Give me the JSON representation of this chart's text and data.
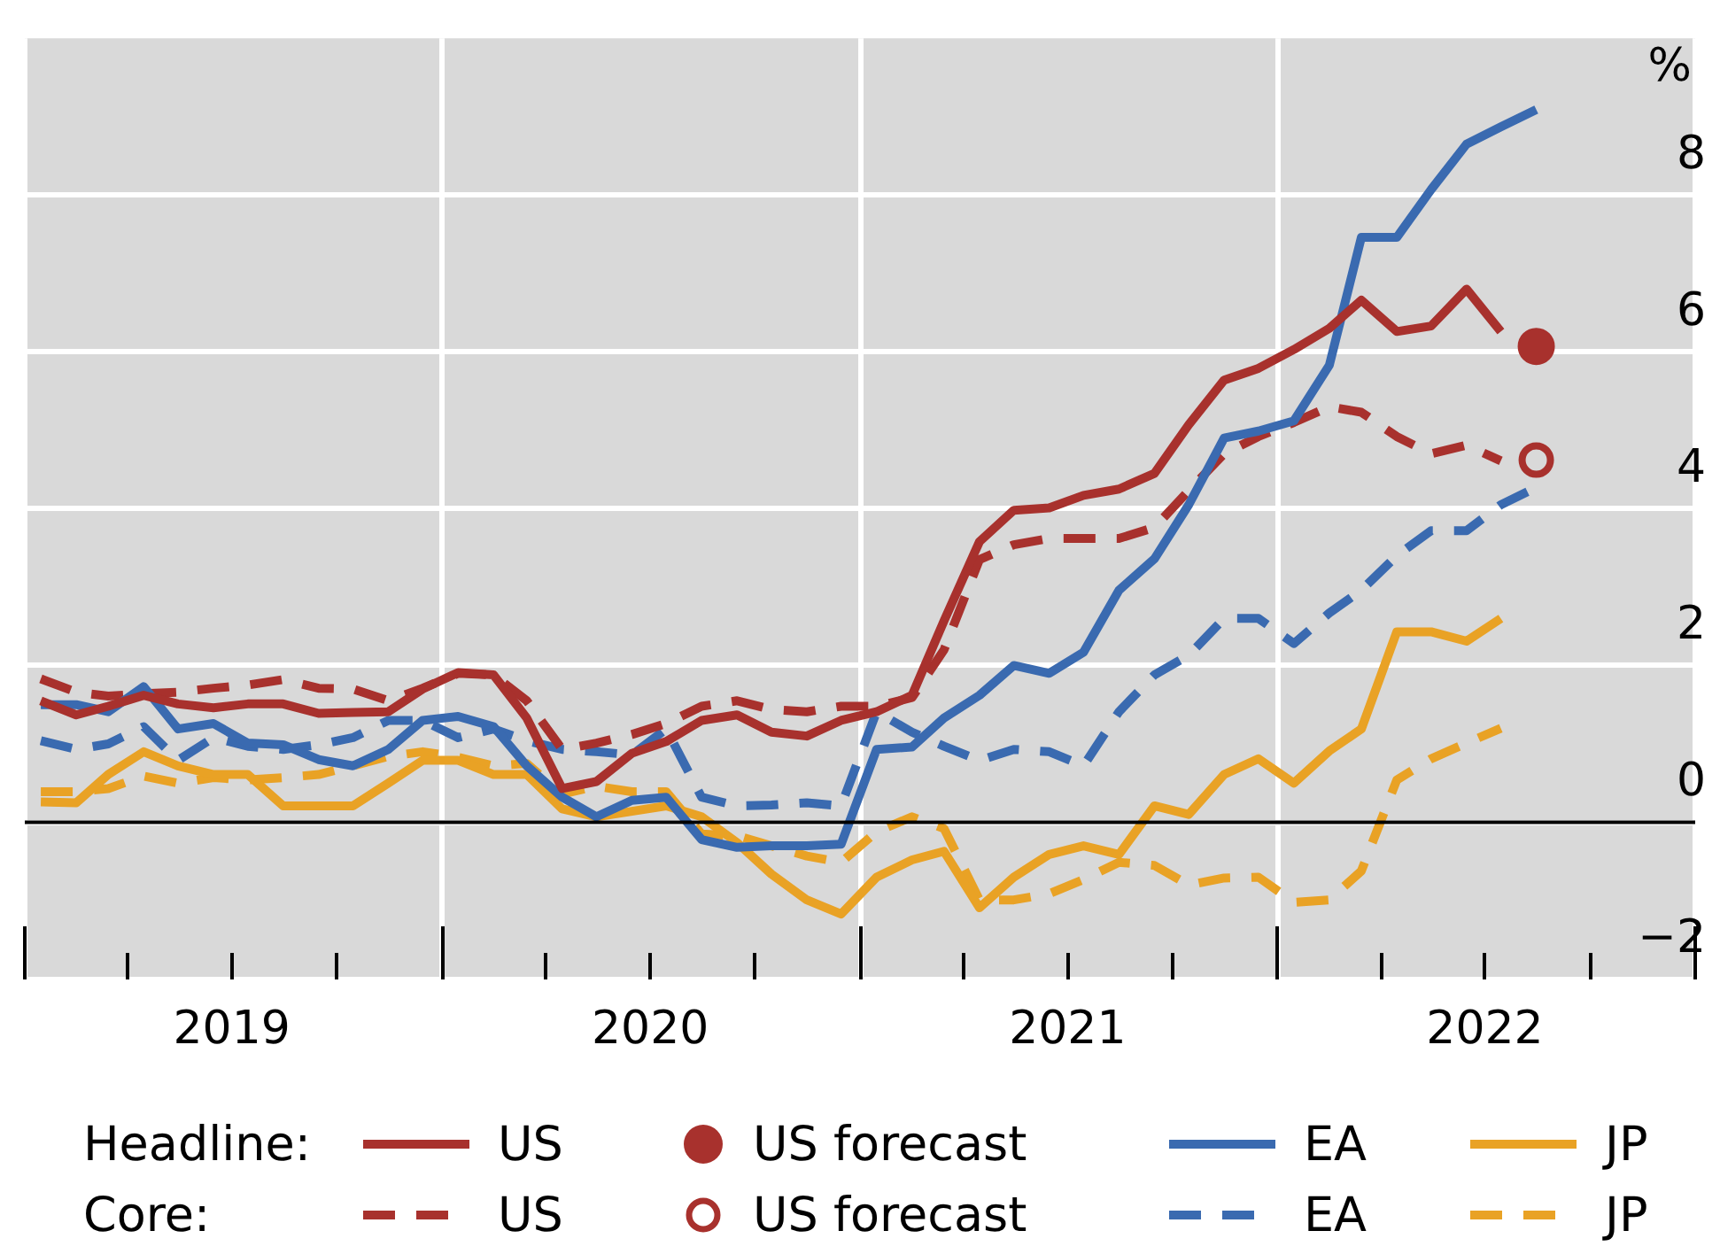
{
  "chart_data": {
    "type": "line",
    "ylabel": "%",
    "marker": "none",
    "grid": true,
    "legend": "bottom",
    "annotations": [
      "Headline:",
      "Core:"
    ],
    "x": [
      "2019-01-15",
      "2019-02-15",
      "2019-03-15",
      "2019-04-15",
      "2019-05-15",
      "2019-06-15",
      "2019-07-15",
      "2019-08-15",
      "2019-09-15",
      "2019-10-15",
      "2019-11-15",
      "2019-12-15",
      "2020-01-15",
      "2020-02-15",
      "2020-03-15",
      "2020-04-15",
      "2020-05-15",
      "2020-06-15",
      "2020-07-15",
      "2020-08-15",
      "2020-09-15",
      "2020-10-15",
      "2020-11-15",
      "2020-12-15",
      "2021-01-15",
      "2021-02-15",
      "2021-03-15",
      "2021-04-15",
      "2021-05-15",
      "2021-06-15",
      "2021-07-15",
      "2021-08-15",
      "2021-09-15",
      "2021-10-15",
      "2021-11-15",
      "2021-12-15",
      "2022-01-15",
      "2022-02-15",
      "2022-03-15",
      "2022-04-15",
      "2022-05-15",
      "2022-06-15",
      "2022-07-15",
      "2022-08-15"
    ],
    "xlim": [
      "2019-01-01",
      "2023-01-01"
    ],
    "xticks": [
      {
        "value": "2019-01-01",
        "label": null
      },
      {
        "value": "2019-04-01",
        "label": null
      },
      {
        "value": "2019-07-01",
        "label": "2019"
      },
      {
        "value": "2019-10-01",
        "label": null
      },
      {
        "value": "2020-01-01",
        "label": null
      },
      {
        "value": "2020-04-01",
        "label": null
      },
      {
        "value": "2020-07-01",
        "label": "2020"
      },
      {
        "value": "2020-10-01",
        "label": null
      },
      {
        "value": "2021-01-01",
        "label": null
      },
      {
        "value": "2021-04-01",
        "label": null
      },
      {
        "value": "2021-07-01",
        "label": "2021"
      },
      {
        "value": "2021-10-01",
        "label": null
      },
      {
        "value": "2022-01-01",
        "label": null
      },
      {
        "value": "2022-04-01",
        "label": null
      },
      {
        "value": "2022-07-01",
        "label": "2022"
      },
      {
        "value": "2022-10-01",
        "label": null
      },
      {
        "value": "2023-01-01",
        "label": null
      }
    ],
    "ylim": [
      -2,
      10
    ],
    "yticks": [
      {
        "value": -2,
        "label": "−2"
      },
      0,
      2,
      4,
      6,
      8
    ],
    "ref_lines": [
      {
        "axis": "y",
        "value": 0,
        "color": "#000000"
      }
    ],
    "series": [
      {
        "name": "US",
        "color": "#a8312d",
        "line_style": "solid",
        "values": [
          1.55,
          1.37,
          1.48,
          1.62,
          1.51,
          1.46,
          1.51,
          1.51,
          1.39,
          1.4,
          1.41,
          1.7,
          1.91,
          1.88,
          1.33,
          0.43,
          0.52,
          0.88,
          1.03,
          1.3,
          1.37,
          1.15,
          1.1,
          1.3,
          1.41,
          1.62,
          2.57,
          3.58,
          3.98,
          4.01,
          4.17,
          4.25,
          4.45,
          5.07,
          5.64,
          5.79,
          6.03,
          6.3,
          6.66,
          6.26,
          6.33,
          6.8,
          6.26,
          null
        ]
      },
      {
        "name": "US forecast",
        "type": "scatter",
        "marker": "circle",
        "color": "#a8312d",
        "line_style": "solid",
        "x": [
          "2022-08-15"
        ],
        "values": [
          6.07
        ]
      },
      {
        "name": "EA",
        "color": "#3a6ab0",
        "line_style": "solid",
        "values": [
          1.5,
          1.5,
          1.41,
          1.73,
          1.19,
          1.26,
          1.01,
          0.99,
          0.8,
          0.72,
          0.93,
          1.3,
          1.35,
          1.22,
          0.72,
          0.32,
          0.07,
          0.28,
          0.32,
          -0.22,
          -0.32,
          -0.3,
          -0.3,
          -0.28,
          0.93,
          0.96,
          1.33,
          1.62,
          2.0,
          1.9,
          2.17,
          2.96,
          3.36,
          4.05,
          4.9,
          4.99,
          5.12,
          5.83,
          7.46,
          7.46,
          8.07,
          8.65,
          8.87,
          9.09
        ]
      },
      {
        "name": "JP",
        "color": "#e9a225",
        "line_style": "solid",
        "values": [
          0.26,
          0.25,
          0.61,
          0.9,
          0.72,
          0.61,
          0.61,
          0.21,
          0.21,
          0.21,
          0.5,
          0.79,
          0.79,
          0.61,
          0.61,
          0.17,
          0.07,
          0.14,
          0.21,
          0.07,
          -0.26,
          -0.66,
          -0.99,
          -1.17,
          -0.7,
          -0.48,
          -0.37,
          -1.09,
          -0.7,
          -0.41,
          -0.3,
          -0.41,
          0.21,
          0.1,
          0.61,
          0.81,
          0.5,
          0.91,
          1.19,
          2.43,
          2.43,
          2.31,
          2.6,
          null
        ]
      },
      {
        "name": "US",
        "color": "#a8312d",
        "line_style": "dashed",
        "values": [
          1.83,
          1.66,
          1.61,
          1.64,
          1.66,
          1.71,
          1.75,
          1.82,
          1.71,
          1.7,
          1.55,
          1.71,
          1.9,
          1.88,
          1.55,
          0.93,
          1.01,
          1.12,
          1.26,
          1.48,
          1.55,
          1.44,
          1.41,
          1.48,
          1.48,
          1.59,
          2.2,
          3.35,
          3.54,
          3.62,
          3.62,
          3.62,
          3.76,
          4.23,
          4.7,
          4.92,
          5.1,
          5.3,
          5.23,
          4.92,
          4.7,
          4.81,
          4.61,
          null
        ]
      },
      {
        "name": "US forecast",
        "type": "scatter",
        "marker": "circle",
        "color": "#a8312d",
        "line_style": "dashed",
        "x": [
          "2022-08-15"
        ],
        "values": [
          4.62
        ]
      },
      {
        "name": "EA",
        "color": "#3a6ab0",
        "line_style": "dashed",
        "values": [
          1.04,
          0.93,
          1.0,
          1.22,
          0.79,
          1.08,
          0.97,
          0.93,
          0.99,
          1.08,
          1.3,
          1.3,
          1.08,
          1.19,
          1.04,
          0.93,
          0.9,
          0.86,
          1.19,
          0.32,
          0.21,
          0.22,
          0.25,
          0.21,
          1.41,
          1.15,
          0.97,
          0.79,
          0.93,
          0.9,
          0.72,
          1.41,
          1.88,
          2.13,
          2.6,
          2.6,
          2.28,
          2.67,
          2.96,
          3.4,
          3.72,
          3.72,
          4.05,
          4.27
        ]
      },
      {
        "name": "JP",
        "color": "#e9a225",
        "line_style": "dashed",
        "values": [
          0.39,
          0.39,
          0.43,
          0.59,
          0.5,
          0.57,
          0.54,
          0.57,
          0.61,
          0.72,
          0.84,
          0.9,
          0.83,
          0.72,
          0.75,
          0.36,
          0.46,
          0.39,
          0.39,
          -0.15,
          -0.17,
          -0.3,
          -0.43,
          -0.51,
          -0.12,
          0.07,
          -0.08,
          -0.99,
          -0.99,
          -0.91,
          -0.73,
          -0.51,
          -0.55,
          -0.8,
          -0.71,
          -0.7,
          -1.02,
          -0.99,
          -0.62,
          0.54,
          0.81,
          1.01,
          1.2,
          null
        ]
      }
    ]
  }
}
